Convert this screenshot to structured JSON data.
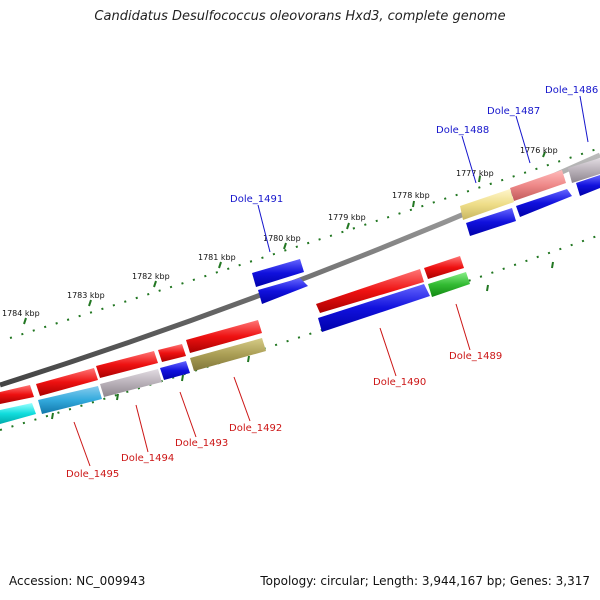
{
  "title": "Candidatus Desulfococcus oleovorans Hxd3, complete genome",
  "accession_label": "Accession: NC_009943",
  "topology_label": "Topology: circular; Length: 3,944,167 bp; Genes: 3,317",
  "ruler_labels": [
    "1776 kbp",
    "1777 kbp",
    "1778 kbp",
    "1779 kbp",
    "1780 kbp",
    "1781 kbp",
    "1782 kbp",
    "1783 kbp",
    "1784 kbp"
  ],
  "gene_labels": {
    "d1486": "Dole_1486",
    "d1487": "Dole_1487",
    "d1488": "Dole_1488",
    "d1489": "Dole_1489",
    "d1490": "Dole_1490",
    "d1491": "Dole_1491",
    "d1492": "Dole_1492",
    "d1493": "Dole_1493",
    "d1494": "Dole_1494",
    "d1495": "Dole_1495"
  },
  "colors": {
    "red": "#ee1111",
    "blue": "#1111dd",
    "cyan": "#11dddd",
    "light_blue": "#33aadd",
    "gray": "#b8b0b8",
    "olive": "#aa9e55",
    "green": "#33bb33",
    "yellow": "#eedd88",
    "pink": "#ee8888",
    "tick": "#227722",
    "backbone": "#777777"
  }
}
